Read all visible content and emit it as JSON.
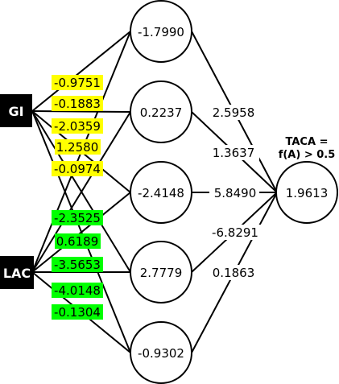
{
  "inputs": [
    {
      "label": "GI",
      "color": "#ffff00"
    },
    {
      "label": "LAC",
      "color": "#00ff00"
    }
  ],
  "hidden": [
    "-1.7990",
    "0.2237",
    "-2.4148",
    "2.7779",
    "-0.9302"
  ],
  "gi_weights": [
    "-0.9751",
    "-0.1883",
    "-2.0359",
    "1.2580",
    "-0.0974"
  ],
  "lac_weights": [
    "-2.3525",
    "0.6189",
    "-3.5653",
    "-4.0148",
    "-0.1304"
  ],
  "output_weights": [
    "2.5958",
    "1.3637",
    "5.8490",
    "-6.8291",
    "0.1863"
  ],
  "output": {
    "value": "1.9613",
    "title_line1": "TACA =",
    "title_line2": "f(A) > 0.5"
  }
}
